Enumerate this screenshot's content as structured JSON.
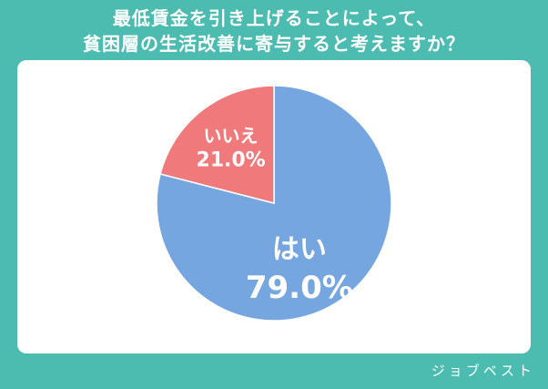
{
  "title_lines": [
    "最低賃金を引き上げることによって、",
    "貧困層の生活改善に寄与すると考えますか？"
  ],
  "brand": "ジョブベスト",
  "colors": {
    "background": "#4cbcb0",
    "yes": "#76a6e0",
    "no": "#f0797b"
  },
  "chart_data": {
    "type": "pie",
    "categories": [
      "はい",
      "いいえ"
    ],
    "values": [
      79.0,
      21.0
    ],
    "value_labels": [
      "79.0%",
      "21.0%"
    ],
    "start": "12 o'clock, clockwise"
  }
}
